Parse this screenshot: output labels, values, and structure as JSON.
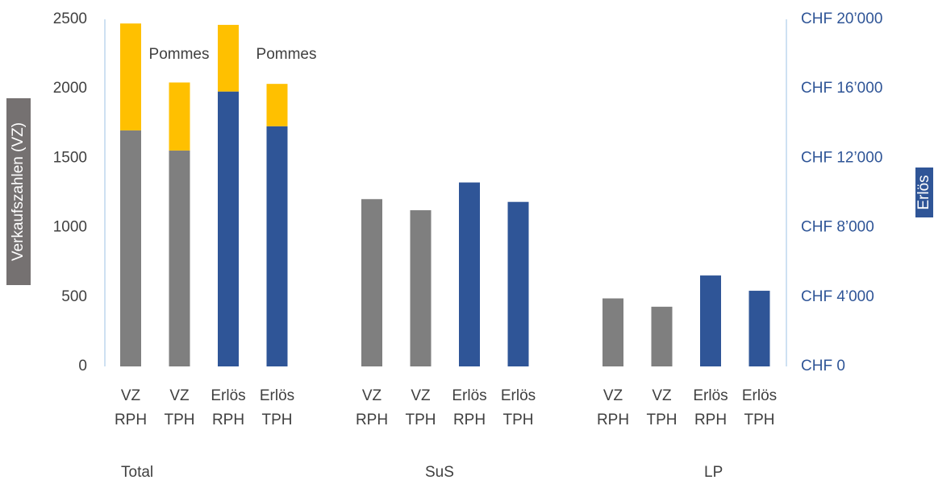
{
  "chart_data": {
    "type": "bar",
    "ylabel": "Verkaufszahlen (VZ)",
    "y2label": "Erlös",
    "groups": [
      "Total",
      "SuS",
      "LP"
    ],
    "categories": [
      [
        "VZ",
        "RPH"
      ],
      [
        "VZ",
        "TPH"
      ],
      [
        "Erlös",
        "RPH"
      ],
      [
        "Erlös",
        "TPH"
      ],
      [
        "VZ",
        "RPH"
      ],
      [
        "VZ",
        "TPH"
      ],
      [
        "Erlös",
        "RPH"
      ],
      [
        "Erlös",
        "TPH"
      ],
      [
        "VZ",
        "RPH"
      ],
      [
        "VZ",
        "TPH"
      ],
      [
        "Erlös",
        "RPH"
      ],
      [
        "Erlös",
        "TPH"
      ]
    ],
    "series": [
      {
        "color": "#7f7f7f",
        "axis": "y",
        "values": [
          1700,
          1555,
          null,
          null,
          1205,
          1125,
          null,
          null,
          490,
          430,
          null,
          null
        ]
      },
      {
        "color": "#2f5597",
        "axis": "y2",
        "values": [
          null,
          null,
          15840,
          13840,
          null,
          null,
          10600,
          9480,
          null,
          null,
          5240,
          4360
        ]
      },
      {
        "name": "Pommes",
        "color": "#ffc000",
        "axis": "y",
        "stack_on": 0,
        "values": [
          770,
          490,
          null,
          null,
          null,
          null,
          null,
          null,
          null,
          null,
          null,
          null
        ]
      },
      {
        "name": "Pommes",
        "color": "#ffc000",
        "axis": "y2",
        "stack_on": 1,
        "values": [
          null,
          null,
          3840,
          2440,
          null,
          null,
          null,
          null,
          null,
          null,
          null,
          null
        ]
      }
    ],
    "ylim": [
      0,
      2500
    ],
    "yticks": [
      0,
      500,
      1000,
      1500,
      2000,
      2500
    ],
    "y2lim": [
      0,
      20000
    ],
    "y2ticks": [
      {
        "value": 0,
        "label": "CHF 0"
      },
      {
        "value": 4000,
        "label": "CHF 4’000"
      },
      {
        "value": 8000,
        "label": "CHF 8’000"
      },
      {
        "value": 12000,
        "label": "CHF 12’000"
      },
      {
        "value": 16000,
        "label": "CHF 16’000"
      },
      {
        "value": 20000,
        "label": "CHF 20’000"
      }
    ]
  }
}
